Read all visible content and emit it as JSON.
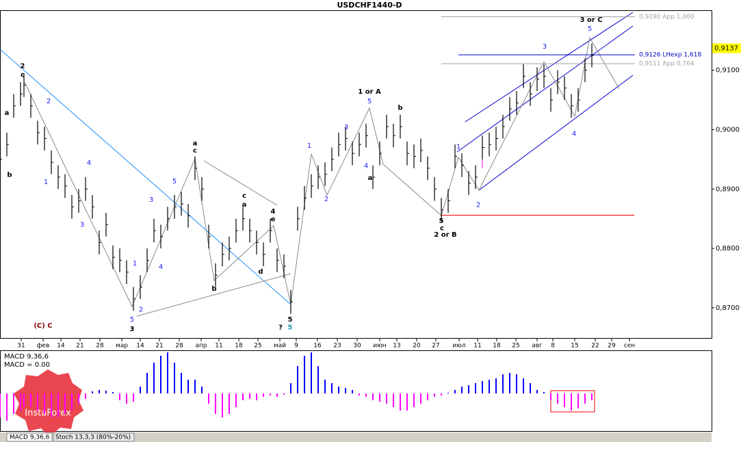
{
  "chart_data": {
    "type": "ohlc",
    "title": "USDCHF1440-D",
    "color": "#000000",
    "xlim": [
      0,
      208
    ],
    "ylim": [
      0.8648,
      0.9201
    ],
    "x": [
      0,
      2,
      4,
      6,
      7,
      9,
      11,
      13,
      15,
      17,
      19,
      21,
      23,
      25,
      27,
      29,
      31,
      33,
      35,
      37,
      39,
      41,
      43,
      45,
      47,
      49,
      51,
      53,
      55,
      57,
      59,
      61,
      63,
      65,
      67,
      69,
      71,
      73,
      75,
      77,
      79,
      81,
      83,
      85,
      87,
      89,
      91,
      93,
      95,
      97,
      99,
      101,
      103,
      105,
      107,
      109,
      111,
      113,
      115,
      117,
      119,
      121,
      123,
      125,
      127,
      129,
      131,
      133,
      135,
      137,
      139,
      141,
      143,
      145,
      147,
      149,
      151,
      153,
      155,
      157,
      159,
      161,
      163,
      165,
      167,
      169,
      171,
      173
    ],
    "high": [
      0.897,
      0.8995,
      0.906,
      0.908,
      0.9095,
      0.906,
      0.9015,
      0.9005,
      0.8965,
      0.894,
      0.8925,
      0.889,
      0.89,
      0.892,
      0.889,
      0.883,
      0.886,
      0.8805,
      0.88,
      0.878,
      0.8735,
      0.8755,
      0.88,
      0.885,
      0.884,
      0.887,
      0.889,
      0.8895,
      0.8875,
      0.8955,
      0.892,
      0.884,
      0.8775,
      0.881,
      0.882,
      0.885,
      0.887,
      0.885,
      0.883,
      0.881,
      0.885,
      0.88,
      0.879,
      0.873,
      0.887,
      0.8905,
      0.8925,
      0.894,
      0.8945,
      0.897,
      0.8995,
      0.9005,
      0.898,
      0.8995,
      0.901,
      0.894,
      0.898,
      0.9025,
      0.901,
      0.9025,
      0.898,
      0.8975,
      0.8985,
      0.8955,
      0.892,
      0.8885,
      0.89,
      0.8975,
      0.896,
      0.893,
      0.894,
      0.899,
      0.8995,
      0.9005,
      0.9025,
      0.9055,
      0.9065,
      0.911,
      0.908,
      0.9105,
      0.911,
      0.907,
      0.91,
      0.909,
      0.906,
      0.907,
      0.912,
      0.9145
    ],
    "low": [
      0.893,
      0.8955,
      0.902,
      0.904,
      0.9055,
      0.902,
      0.8975,
      0.8965,
      0.8925,
      0.89,
      0.8885,
      0.885,
      0.886,
      0.888,
      0.885,
      0.879,
      0.882,
      0.8765,
      0.876,
      0.874,
      0.8695,
      0.8715,
      0.876,
      0.881,
      0.88,
      0.883,
      0.885,
      0.8855,
      0.8835,
      0.8915,
      0.888,
      0.88,
      0.8735,
      0.877,
      0.878,
      0.881,
      0.883,
      0.881,
      0.879,
      0.877,
      0.881,
      0.876,
      0.875,
      0.869,
      0.883,
      0.8865,
      0.8885,
      0.89,
      0.8905,
      0.893,
      0.8955,
      0.8965,
      0.894,
      0.8955,
      0.897,
      0.89,
      0.894,
      0.8985,
      0.897,
      0.8985,
      0.894,
      0.8935,
      0.8945,
      0.8915,
      0.888,
      0.8845,
      0.886,
      0.8935,
      0.892,
      0.889,
      0.89,
      0.895,
      0.8955,
      0.8965,
      0.8985,
      0.9015,
      0.9025,
      0.907,
      0.904,
      0.9065,
      0.907,
      0.903,
      0.906,
      0.905,
      0.902,
      0.903,
      0.908,
      0.9105
    ],
    "close": [
      0.895,
      0.8975,
      0.904,
      0.906,
      0.9075,
      0.904,
      0.8995,
      0.8985,
      0.8945,
      0.892,
      0.8905,
      0.887,
      0.888,
      0.89,
      0.887,
      0.881,
      0.884,
      0.8785,
      0.878,
      0.876,
      0.8715,
      0.8735,
      0.878,
      0.883,
      0.882,
      0.885,
      0.887,
      0.8875,
      0.8855,
      0.8935,
      0.89,
      0.882,
      0.8755,
      0.879,
      0.88,
      0.883,
      0.885,
      0.883,
      0.881,
      0.879,
      0.883,
      0.878,
      0.877,
      0.871,
      0.885,
      0.8885,
      0.8905,
      0.892,
      0.8925,
      0.895,
      0.8975,
      0.8985,
      0.896,
      0.8975,
      0.899,
      0.892,
      0.896,
      0.9005,
      0.899,
      0.9005,
      0.896,
      0.8955,
      0.8965,
      0.8935,
      0.89,
      0.8865,
      0.888,
      0.8955,
      0.894,
      0.891,
      0.892,
      0.897,
      0.8975,
      0.8985,
      0.9005,
      0.9035,
      0.9045,
      0.909,
      0.906,
      0.9085,
      0.909,
      0.905,
      0.908,
      0.907,
      0.904,
      0.905,
      0.91,
      0.9125
    ],
    "yticks": [
      {
        "value": 0.87,
        "label": "0,8700"
      },
      {
        "value": 0.88,
        "label": "0,8800"
      },
      {
        "value": 0.89,
        "label": "0,8900"
      },
      {
        "value": 0.9,
        "label": "0,9000"
      },
      {
        "value": 0.91,
        "label": "0,9100"
      }
    ],
    "xticks": [
      {
        "value": 6.2,
        "label": "31"
      },
      {
        "value": 12.6,
        "label": "фев"
      },
      {
        "value": 17.8,
        "label": "14"
      },
      {
        "value": 23.4,
        "label": "21"
      },
      {
        "value": 29.2,
        "label": "28"
      },
      {
        "value": 35.6,
        "label": "мар"
      },
      {
        "value": 41,
        "label": "14"
      },
      {
        "value": 46.6,
        "label": "21"
      },
      {
        "value": 52.4,
        "label": "28"
      },
      {
        "value": 58.8,
        "label": "апр"
      },
      {
        "value": 64,
        "label": "11"
      },
      {
        "value": 69.8,
        "label": "18"
      },
      {
        "value": 75.4,
        "label": "25"
      },
      {
        "value": 81.8,
        "label": "май"
      },
      {
        "value": 86.6,
        "label": "9"
      },
      {
        "value": 92.8,
        "label": "16"
      },
      {
        "value": 98.6,
        "label": "23"
      },
      {
        "value": 104.4,
        "label": "30"
      },
      {
        "value": 111,
        "label": "июн"
      },
      {
        "value": 116,
        "label": "13"
      },
      {
        "value": 121.8,
        "label": "20"
      },
      {
        "value": 127.4,
        "label": "27"
      },
      {
        "value": 134.2,
        "label": "июл"
      },
      {
        "value": 139.6,
        "label": "11"
      },
      {
        "value": 145.2,
        "label": "18"
      },
      {
        "value": 150.8,
        "label": "25"
      },
      {
        "value": 157,
        "label": "авг"
      },
      {
        "value": 161.6,
        "label": "8"
      },
      {
        "value": 168,
        "label": "15"
      },
      {
        "value": 174,
        "label": "22"
      },
      {
        "value": 178.8,
        "label": "29"
      },
      {
        "value": 184,
        "label": "сен"
      }
    ],
    "levels": [
      {
        "value": 0.919,
        "label": "0,9190 App 1,000",
        "color": "#a0a0a0"
      },
      {
        "value": 0.9126,
        "label": "0,9126 LHexp 1,618",
        "color": "#0000cc"
      },
      {
        "value": 0.9111,
        "label": "0,9111 App 0,764",
        "color": "#a0a0a0"
      }
    ],
    "support_level": 0.8856,
    "current_price": {
      "value": 0.9137,
      "label": "0,9137"
    },
    "annotations": [
      {
        "text": "2",
        "x": 6.6,
        "y": 0.9107,
        "color": "#000000"
      },
      {
        "text": "c",
        "x": 6.6,
        "y": 0.9092,
        "color": "#000000"
      },
      {
        "text": "a",
        "x": 2,
        "y": 0.9028,
        "color": "#000000"
      },
      {
        "text": "b",
        "x": 2.8,
        "y": 0.8924,
        "color": "#000000"
      },
      {
        "text": "2",
        "x": 14.2,
        "y": 0.9048,
        "color": "#1a1aff"
      },
      {
        "text": "1",
        "x": 13.4,
        "y": 0.8912,
        "color": "#1a1aff"
      },
      {
        "text": "3",
        "x": 24,
        "y": 0.884,
        "color": "#1a1aff"
      },
      {
        "text": "4",
        "x": 26,
        "y": 0.8944,
        "color": "#1a1aff"
      },
      {
        "text": "1",
        "x": 39.4,
        "y": 0.8775,
        "color": "#1a1aff"
      },
      {
        "text": "3",
        "x": 44.2,
        "y": 0.8882,
        "color": "#1a1aff"
      },
      {
        "text": "5",
        "x": 51,
        "y": 0.8913,
        "color": "#1a1aff"
      },
      {
        "text": "4",
        "x": 47,
        "y": 0.8769,
        "color": "#1a1aff"
      },
      {
        "text": "2",
        "x": 41.2,
        "y": 0.8697,
        "color": "#1a1aff"
      },
      {
        "text": "5",
        "x": 38.6,
        "y": 0.868,
        "color": "#1a1aff"
      },
      {
        "text": "3",
        "x": 38.6,
        "y": 0.8664,
        "color": "#000000"
      },
      {
        "text": "a",
        "x": 57,
        "y": 0.8977,
        "color": "#000000"
      },
      {
        "text": "c",
        "x": 57,
        "y": 0.8965,
        "color": "#000000"
      },
      {
        "text": "b",
        "x": 62.6,
        "y": 0.8732,
        "color": "#000000"
      },
      {
        "text": "c",
        "x": 71.4,
        "y": 0.8889,
        "color": "#000000"
      },
      {
        "text": "a",
        "x": 71.4,
        "y": 0.8874,
        "color": "#000000"
      },
      {
        "text": "d",
        "x": 76.2,
        "y": 0.8761,
        "color": "#000000"
      },
      {
        "text": "4",
        "x": 79.8,
        "y": 0.8862,
        "color": "#000000"
      },
      {
        "text": "e",
        "x": 79.8,
        "y": 0.8849,
        "color": "#000000"
      },
      {
        "text": "1 or A",
        "x": 108,
        "y": 0.9064,
        "color": "#000000"
      },
      {
        "text": "5",
        "x": 108,
        "y": 0.9048,
        "color": "#1a1aff"
      },
      {
        "text": "3",
        "x": 101.2,
        "y": 0.9004,
        "color": "#1a1aff"
      },
      {
        "text": "1",
        "x": 90.4,
        "y": 0.8973,
        "color": "#1a1aff"
      },
      {
        "text": "2",
        "x": 95.4,
        "y": 0.8883,
        "color": "#1a1aff"
      },
      {
        "text": "4",
        "x": 107,
        "y": 0.8939,
        "color": "#1a1aff"
      },
      {
        "text": "a",
        "x": 108.2,
        "y": 0.8919,
        "color": "#000000"
      },
      {
        "text": "b",
        "x": 117,
        "y": 0.9037,
        "color": "#000000"
      },
      {
        "text": "5",
        "x": 129,
        "y": 0.8846,
        "color": "#000000"
      },
      {
        "text": "c",
        "x": 129.2,
        "y": 0.8834,
        "color": "#000000"
      },
      {
        "text": "2 or B",
        "x": 130.2,
        "y": 0.8823,
        "color": "#000000"
      },
      {
        "text": "1",
        "x": 134,
        "y": 0.8971,
        "color": "#1a1aff"
      },
      {
        "text": "2",
        "x": 139.8,
        "y": 0.8873,
        "color": "#1a1aff"
      },
      {
        "text": "3",
        "x": 159.2,
        "y": 0.914,
        "color": "#1a1aff"
      },
      {
        "text": "4",
        "x": 167.8,
        "y": 0.8993,
        "color": "#1a1aff"
      },
      {
        "text": "5",
        "x": 172.4,
        "y": 0.917,
        "color": "#1a1aff"
      },
      {
        "text": "3 or C",
        "x": 172.8,
        "y": 0.9185,
        "color": "#000000"
      },
      {
        "text": "(C) C",
        "x": 12.6,
        "y": 0.867,
        "color": "#8b0000"
      },
      {
        "text": "?",
        "x": 82,
        "y": 0.8667,
        "color": "#000000"
      },
      {
        "text": "5",
        "x": 84.8,
        "y": 0.868,
        "color": "#000000"
      },
      {
        "text": "5",
        "x": 84.8,
        "y": 0.8667,
        "color": "#1a9ab0"
      }
    ],
    "macd": {
      "label": "MACD 9,36,6",
      "value_label": "MACD = 0.00",
      "ylim": [
        -0.0055,
        0.006
      ],
      "pos_color": "#0000ff",
      "neg_color": "#ff00ff",
      "values": [
        -0.0035,
        -0.004,
        -0.003,
        -0.0025,
        -0.002,
        -0.002,
        -0.0025,
        -0.003,
        -0.0035,
        -0.0035,
        -0.003,
        -0.0025,
        -0.0015,
        -0.0008,
        0.0003,
        0.0005,
        0.0004,
        0.0002,
        -0.001,
        -0.0015,
        -0.0012,
        0.001,
        0.003,
        0.0045,
        0.0055,
        0.006,
        0.0045,
        0.003,
        0.002,
        0.002,
        0.001,
        -0.0015,
        -0.003,
        -0.0035,
        -0.003,
        -0.002,
        -0.001,
        -0.0008,
        -0.001,
        -0.0005,
        -0.0003,
        -0.0005,
        -0.0002,
        0.0015,
        0.004,
        0.0055,
        0.006,
        0.004,
        0.002,
        0.0015,
        0.001,
        0.0008,
        0.0005,
        -0.0003,
        -0.0005,
        -0.001,
        -0.0012,
        -0.0015,
        -0.002,
        -0.0025,
        -0.0025,
        -0.002,
        -0.0015,
        -0.001,
        -0.0005,
        -0.0003,
        0.0001,
        0.0005,
        0.001,
        0.0012,
        0.0015,
        0.0018,
        0.002,
        0.0022,
        0.0028,
        0.003,
        0.0028,
        0.0022,
        0.0015,
        0.0005,
        0.0002,
        -0.001,
        -0.0015,
        -0.002,
        -0.0025,
        -0.0022,
        -0.0015,
        -0.001
      ]
    },
    "tabs": [
      "MACD 9,36,6",
      "Stoch 13,3,3 (80%-20%)"
    ],
    "watermark": "InstaForex"
  }
}
